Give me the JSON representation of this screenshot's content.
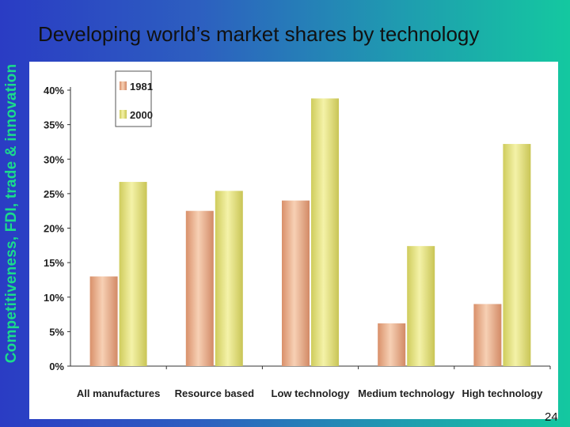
{
  "slide": {
    "side_label": "Competitiveness, FDI, trade & innovation",
    "title": "Developing world’s market shares by technology",
    "page_number": "24"
  },
  "colors": {
    "series_1981": "#e8a882",
    "series_2000": "#e3e07a",
    "axis": "#333333"
  },
  "chart_data": {
    "type": "bar",
    "title": "",
    "xlabel": "",
    "ylabel": "",
    "categories": [
      "All manufactures",
      "Resource based",
      "Low technology",
      "Medium technology",
      "High technology"
    ],
    "series": [
      {
        "name": "1981",
        "values": [
          13,
          22.5,
          24,
          6.2,
          9
        ]
      },
      {
        "name": "2000",
        "values": [
          26.7,
          25.4,
          38.8,
          17.4,
          32.2
        ]
      }
    ],
    "ylim": [
      0,
      40
    ],
    "yticks": [
      "0%",
      "5%",
      "10%",
      "15%",
      "20%",
      "25%",
      "30%",
      "35%",
      "40%"
    ],
    "grid": false,
    "legend_position": "top-left"
  }
}
